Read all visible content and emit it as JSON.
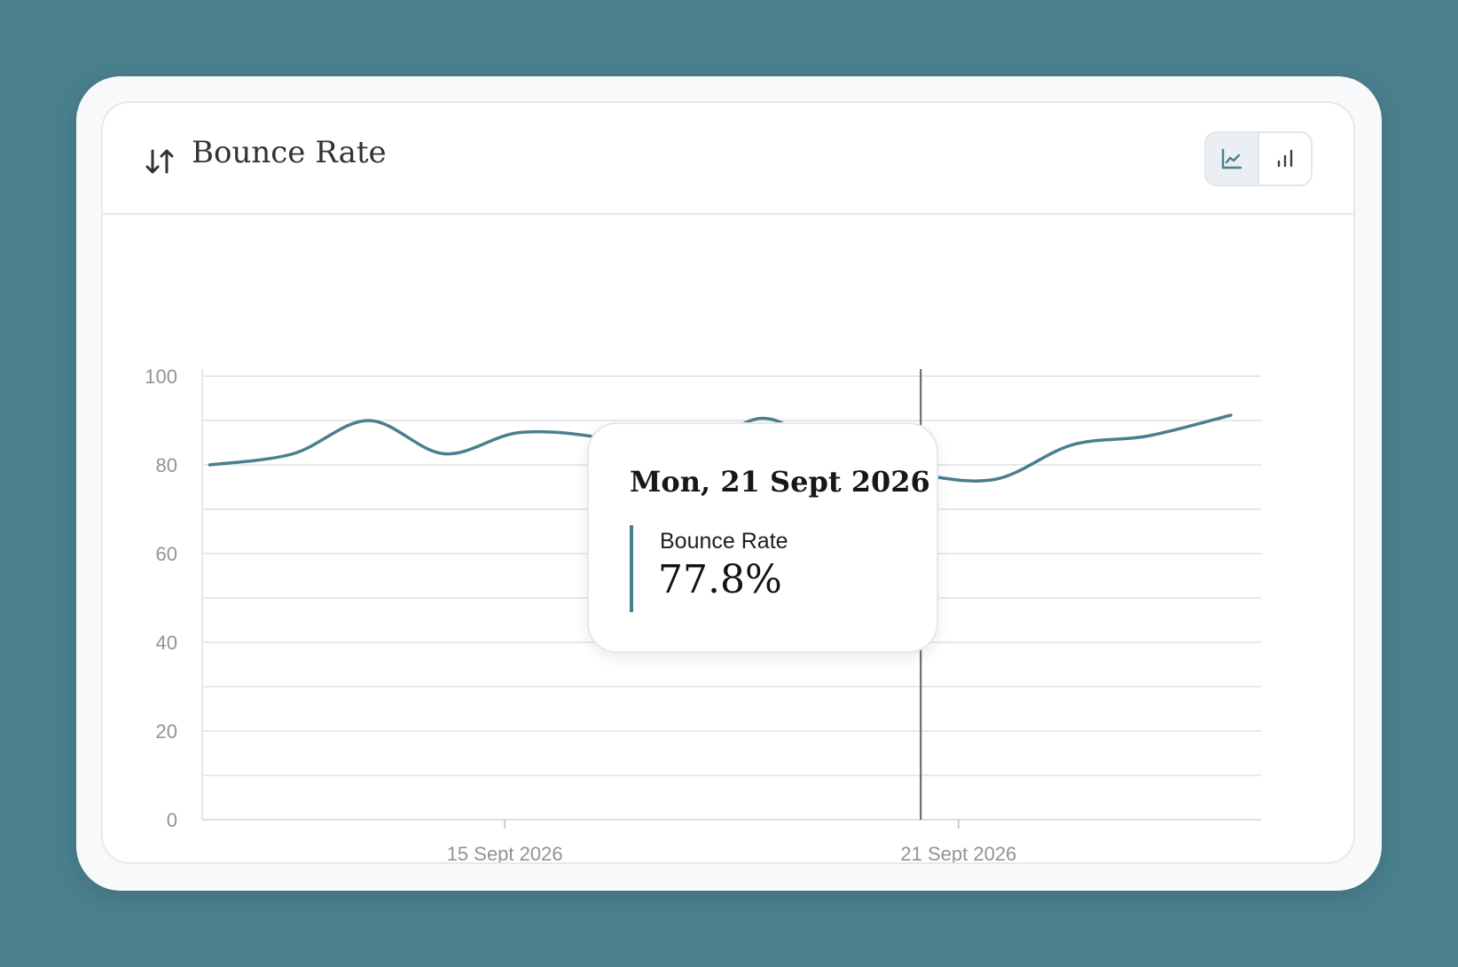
{
  "header": {
    "title": "Bounce Rate",
    "title_icon": "sort-arrows-icon"
  },
  "view_toggle": {
    "options": [
      {
        "name": "line-chart-icon",
        "active": true
      },
      {
        "name": "bar-chart-icon",
        "active": false
      }
    ]
  },
  "tooltip": {
    "date": "Mon, 21 Sept 2026",
    "series_label": "Bounce Rate",
    "value": "77.8%"
  },
  "chart_data": {
    "type": "line",
    "title": "Bounce Rate",
    "xlabel": "",
    "ylabel": "",
    "ylim": [
      0,
      100
    ],
    "yticks": [
      0,
      20,
      40,
      60,
      80,
      100
    ],
    "grid": true,
    "x_tick_labels": [
      {
        "label": "15 Sept 2026",
        "day": 15
      },
      {
        "label": "21 Sept 2026",
        "day": 21
      }
    ],
    "series": [
      {
        "color": "#4a7f8e",
        "points": [
          {
            "day": 11.1,
            "y": 80.0
          },
          {
            "day": 12.2,
            "y": 82.5
          },
          {
            "day": 13.2,
            "y": 90.0
          },
          {
            "day": 14.2,
            "y": 82.5
          },
          {
            "day": 15.2,
            "y": 87.3
          },
          {
            "day": 16.3,
            "y": 86.0
          },
          {
            "day": 17.3,
            "y": 81.0
          },
          {
            "day": 18.4,
            "y": 90.5
          },
          {
            "day": 19.4,
            "y": 82.0
          },
          {
            "day": 20.5,
            "y": 77.8
          },
          {
            "day": 21.5,
            "y": 76.8
          },
          {
            "day": 22.5,
            "y": 84.5
          },
          {
            "day": 23.5,
            "y": 86.5
          },
          {
            "day": 24.6,
            "y": 91.2
          }
        ]
      }
    ],
    "highlight": {
      "day": 20.5,
      "y": 77.8
    }
  },
  "colors": {
    "accent": "#4a7f8e",
    "background": "#4a7f8e",
    "grid": "#e6e8eb"
  }
}
